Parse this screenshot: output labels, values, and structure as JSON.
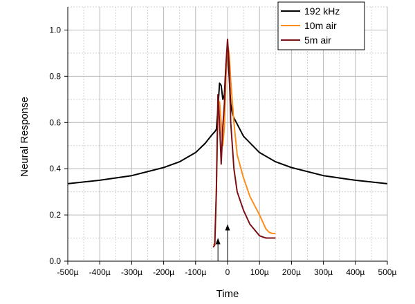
{
  "chart_data": {
    "type": "line",
    "title": "",
    "xlabel": "Time",
    "ylabel": "Neural Response",
    "xlim": [
      -0.0005,
      0.0005
    ],
    "ylim": [
      0.0,
      1.1
    ],
    "grid": true,
    "legend_position": "top-right",
    "x_tick_labels": [
      "-500µ",
      "-400µ",
      "-300µ",
      "-200µ",
      "-100µ",
      "0",
      "100µ",
      "200µ",
      "300µ",
      "400µ",
      "500µ"
    ],
    "y_tick_labels": [
      "0.0",
      "0.2",
      "0.4",
      "0.6",
      "0.8",
      "1.0"
    ],
    "series": [
      {
        "name": "192 kHz",
        "color": "#000000",
        "x": [
          -0.0005,
          -0.0004,
          -0.0003,
          -0.0002,
          -0.00015,
          -0.0001,
          -7e-05,
          -5e-05,
          -4e-05,
          -3.5e-05,
          -3e-05,
          -2.5e-05,
          -2e-05,
          -1.5e-05,
          -1e-05,
          -5e-06,
          0.0,
          5e-06,
          1e-05,
          1.5e-05,
          2e-05,
          5e-05,
          0.0001,
          0.00015,
          0.0002,
          0.0003,
          0.0004,
          0.0005
        ],
        "y": [
          0.335,
          0.35,
          0.37,
          0.405,
          0.43,
          0.47,
          0.51,
          0.545,
          0.56,
          0.57,
          0.66,
          0.77,
          0.76,
          0.7,
          0.72,
          0.85,
          0.92,
          0.8,
          0.68,
          0.64,
          0.62,
          0.54,
          0.47,
          0.43,
          0.405,
          0.37,
          0.35,
          0.335
        ]
      },
      {
        "name": "10m air",
        "color": "#ff8c1a",
        "x": [
          -4.5e-05,
          -4e-05,
          -3.5e-05,
          -3e-05,
          -2.5e-05,
          -2e-05,
          -1.5e-05,
          -1e-05,
          -5e-06,
          0.0,
          5e-06,
          1e-05,
          2e-05,
          3e-05,
          5e-05,
          7e-05,
          0.0001,
          0.00012,
          0.00013,
          0.00014,
          0.00015
        ],
        "y": [
          0.07,
          0.075,
          0.3,
          0.65,
          0.69,
          0.6,
          0.5,
          0.58,
          0.8,
          0.94,
          0.9,
          0.78,
          0.6,
          0.46,
          0.36,
          0.28,
          0.2,
          0.14,
          0.125,
          0.12,
          0.12
        ]
      },
      {
        "name": "5m air",
        "color": "#7a1016",
        "x": [
          -4.5e-05,
          -4e-05,
          -3.5e-05,
          -3e-05,
          -2.5e-05,
          -2e-05,
          -1.5e-05,
          -1e-05,
          -5e-06,
          0.0,
          5e-06,
          1e-05,
          2e-05,
          3e-05,
          5e-05,
          7e-05,
          0.0001,
          0.00011,
          0.00012,
          0.00013,
          0.00015
        ],
        "y": [
          0.06,
          0.07,
          0.3,
          0.72,
          0.6,
          0.42,
          0.58,
          0.68,
          0.85,
          0.96,
          0.84,
          0.6,
          0.4,
          0.3,
          0.22,
          0.16,
          0.11,
          0.105,
          0.1,
          0.1,
          0.1
        ]
      }
    ],
    "annotations": [
      {
        "type": "arrow",
        "x": -3e-05,
        "y_from": 0.0,
        "y_to": 0.1
      },
      {
        "type": "arrow",
        "x": 0.0,
        "y_from": 0.0,
        "y_to": 0.16
      }
    ]
  }
}
